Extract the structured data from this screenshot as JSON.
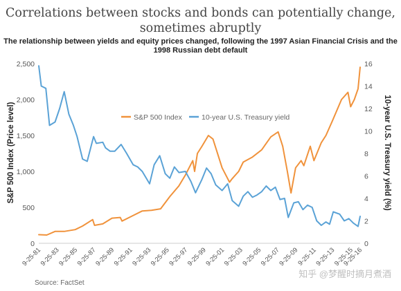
{
  "title": "Correlations between stocks and bonds can potentially change, sometimes abruptly",
  "subtitle": "The relationship between yields and equity prices changed, following the 1997 Asian Financial Crisis and the 1998 Russian debt default",
  "source": "Source: FactSet",
  "watermark": "知乎 @梦醒时摘月煮酒",
  "colors": {
    "sp500": "#F0923B",
    "treasury": "#5AA2D6"
  },
  "chart_data": {
    "type": "line",
    "legend_position": "center",
    "grid": false,
    "x_tick_labels": [
      "9-25-81",
      "9-25-83",
      "9-25-85",
      "9-25-87",
      "9-25-89",
      "9-25-91",
      "9-25-93",
      "9-25-95",
      "9-25-97",
      "9-25-99",
      "9-25-01",
      "9-25-03",
      "9-25-05",
      "9-25-07",
      "9-25-09",
      "9-25-11",
      "9-25-13",
      "9-25-15",
      "9-25-16"
    ],
    "y_left": {
      "label": "S&P 500 Index (Price level)",
      "ticks": [
        "0",
        "500",
        "1,000",
        "1,500",
        "2,000",
        "2,500"
      ],
      "range": [
        0,
        2500
      ]
    },
    "y_right": {
      "label": "10-year U.S. Treasury yield (%)",
      "ticks": [
        "0",
        "2",
        "4",
        "6",
        "8",
        "10",
        "12",
        "14",
        "16"
      ],
      "range": [
        0,
        16
      ]
    },
    "x_range": [
      1981.73,
      2016.73
    ],
    "series": [
      {
        "name": "S&P 500 Index",
        "axis": "left",
        "x": [
          1981.73,
          1982.6,
          1983.5,
          1984.5,
          1985.7,
          1986.5,
          1987.6,
          1987.8,
          1988.7,
          1989.7,
          1990.6,
          1990.8,
          1991.9,
          1993.0,
          1994.0,
          1995.0,
          1996.0,
          1997.0,
          1997.7,
          1998.5,
          1998.7,
          1999.0,
          1999.5,
          2000.2,
          2000.7,
          2001.7,
          2002.5,
          2002.8,
          2003.5,
          2004.0,
          2005.0,
          2006.0,
          2007.0,
          2007.8,
          2008.3,
          2008.8,
          2009.2,
          2009.7,
          2010.3,
          2010.6,
          2011.3,
          2011.7,
          2012.5,
          2013.0,
          2013.7,
          2014.7,
          2015.4,
          2015.7,
          2016.1,
          2016.5,
          2016.73
        ],
        "values": [
          120,
          115,
          165,
          165,
          190,
          240,
          330,
          250,
          270,
          350,
          360,
          310,
          380,
          450,
          460,
          480,
          650,
          800,
          950,
          1150,
          1000,
          1250,
          1350,
          1500,
          1450,
          1050,
          850,
          900,
          1000,
          1130,
          1200,
          1300,
          1480,
          1550,
          1350,
          1000,
          700,
          1050,
          1150,
          1080,
          1350,
          1150,
          1400,
          1500,
          1700,
          2000,
          2100,
          1900,
          2000,
          2150,
          2450
        ]
      },
      {
        "name": "10-year U.S. Treasury yield",
        "axis": "right",
        "x": [
          1981.73,
          1982.0,
          1982.5,
          1982.9,
          1983.5,
          1984.0,
          1984.5,
          1985.0,
          1985.5,
          1985.9,
          1986.5,
          1987.0,
          1987.7,
          1988.0,
          1988.7,
          1989.0,
          1989.5,
          1990.0,
          1990.7,
          1991.3,
          1992.0,
          1992.5,
          1993.0,
          1993.8,
          1994.3,
          1994.9,
          1995.5,
          1996.0,
          1996.5,
          1997.0,
          1997.7,
          1998.3,
          1998.8,
          1999.5,
          2000.0,
          2000.5,
          2001.0,
          2001.7,
          2002.3,
          2002.8,
          2003.5,
          2004.0,
          2004.5,
          2005.0,
          2005.5,
          2006.0,
          2006.5,
          2007.0,
          2007.5,
          2008.0,
          2008.5,
          2008.9,
          2009.5,
          2010.0,
          2010.5,
          2011.0,
          2011.5,
          2012.0,
          2012.5,
          2013.0,
          2013.4,
          2013.8,
          2014.5,
          2015.0,
          2015.5,
          2016.0,
          2016.5,
          2016.73
        ],
        "values": [
          15.8,
          14.0,
          13.8,
          10.5,
          10.8,
          12.0,
          13.5,
          11.5,
          10.5,
          9.5,
          7.5,
          7.3,
          9.5,
          8.9,
          9.0,
          8.5,
          8.2,
          8.2,
          8.8,
          8.0,
          7.0,
          6.8,
          6.4,
          5.3,
          7.0,
          7.8,
          6.2,
          5.8,
          6.8,
          6.3,
          6.4,
          5.5,
          4.5,
          5.7,
          6.7,
          6.2,
          5.2,
          4.7,
          5.3,
          3.8,
          3.3,
          4.2,
          4.6,
          4.1,
          4.3,
          4.6,
          5.1,
          4.7,
          5.0,
          3.9,
          4.0,
          2.3,
          3.6,
          3.7,
          3.0,
          3.4,
          3.2,
          2.0,
          1.6,
          1.9,
          1.7,
          2.8,
          2.6,
          2.0,
          2.2,
          1.8,
          1.5,
          2.4
        ]
      }
    ]
  }
}
